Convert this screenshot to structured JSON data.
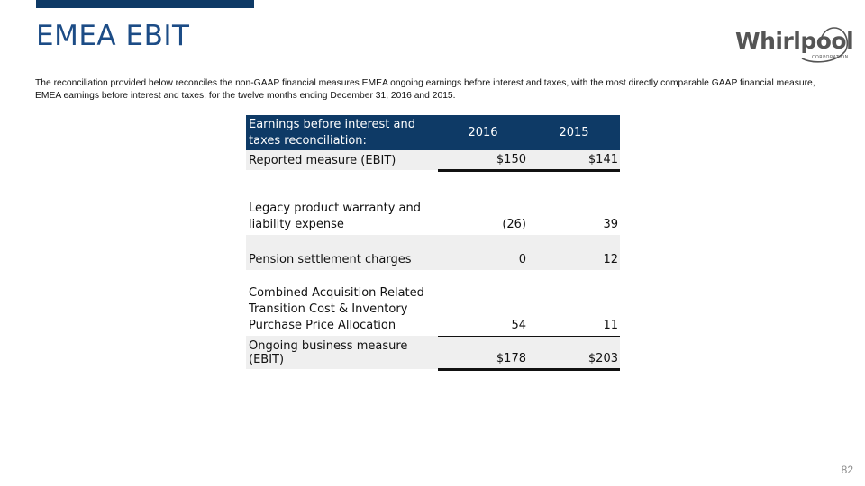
{
  "slide": {
    "title": "EMEA EBIT",
    "intro": "The reconciliation provided below reconciles the non-GAAP financial measures EMEA ongoing earnings before interest and taxes, with the most directly comparable GAAP financial measure, EMEA earnings before interest and taxes, for the twelve months ending December 31, 2016 and 2015.",
    "page_number": "82"
  },
  "logo": {
    "wordmark": "Whirlpool",
    "subtitle": "CORPORATION",
    "color": "#555555"
  },
  "colors": {
    "accent": "#0e3a66",
    "title": "#1c4c86",
    "row_shade": "#efefef"
  },
  "table": {
    "header": {
      "label_line1": "Earnings before interest and",
      "label_line2": "taxes reconciliation:",
      "col1": "2016",
      "col2": "2015"
    },
    "reported": {
      "label": "Reported measure (EBIT)",
      "v2016": "$150",
      "v2015": "$141"
    },
    "items": [
      {
        "label_lines": [
          "Legacy product warranty and",
          "liability expense"
        ],
        "v2016": "(26)",
        "v2015": "39"
      },
      {
        "label_lines": [
          "Pension settlement charges"
        ],
        "v2016": "0",
        "v2015": "12"
      },
      {
        "label_lines": [
          "Combined Acquisition Related",
          "Transition Cost & Inventory",
          "Purchase Price Allocation"
        ],
        "v2016": "54",
        "v2015": "11"
      }
    ],
    "ongoing": {
      "label": "Ongoing business measure (EBIT)",
      "v2016": "$178",
      "v2015": "$203"
    }
  }
}
